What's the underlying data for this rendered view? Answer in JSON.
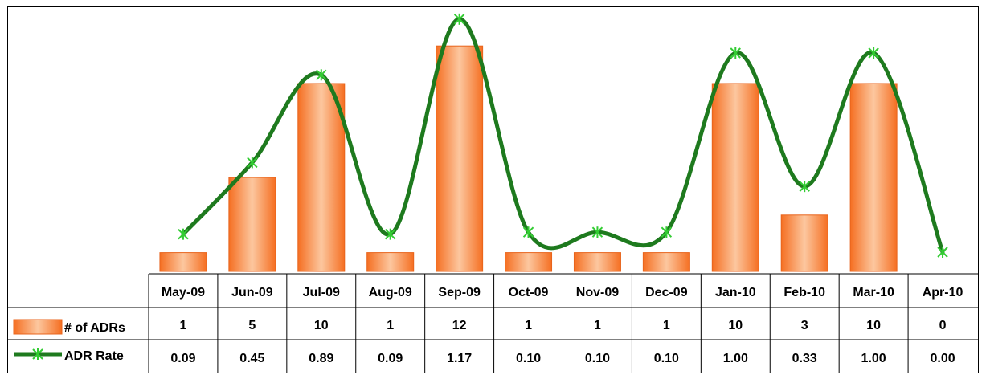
{
  "chart_data": {
    "type": "bar",
    "categories": [
      "May-09",
      "Jun-09",
      "Jul-09",
      "Aug-09",
      "Sep-09",
      "Oct-09",
      "Nov-09",
      "Dec-09",
      "Jan-10",
      "Feb-10",
      "Mar-10",
      "Apr-10"
    ],
    "series": [
      {
        "name": "# of ADRs",
        "type": "bar",
        "values": [
          1,
          5,
          10,
          1,
          12,
          1,
          1,
          1,
          10,
          3,
          10,
          0
        ],
        "labels": [
          "1",
          "5",
          "10",
          "1",
          "12",
          "1",
          "1",
          "1",
          "10",
          "3",
          "10",
          "0"
        ],
        "color": "#f5823c"
      },
      {
        "name": "ADR Rate",
        "type": "line",
        "values": [
          0.09,
          0.45,
          0.89,
          0.09,
          1.17,
          0.1,
          0.1,
          0.1,
          1.0,
          0.33,
          1.0,
          0.0
        ],
        "labels": [
          "0.09",
          "0.45",
          "0.89",
          "0.09",
          "1.17",
          "0.10",
          "0.10",
          "0.10",
          "1.00",
          "0.33",
          "1.00",
          "0.00"
        ],
        "color": "#1e7a1e",
        "marker_color": "#33cc33"
      }
    ],
    "title": "",
    "xlabel": "",
    "ylabel": "",
    "ylim_bars": [
      0,
      13
    ],
    "ylim_line": [
      0,
      1.3
    ],
    "grid": false,
    "legend": "data-table-left",
    "data_table": true
  }
}
